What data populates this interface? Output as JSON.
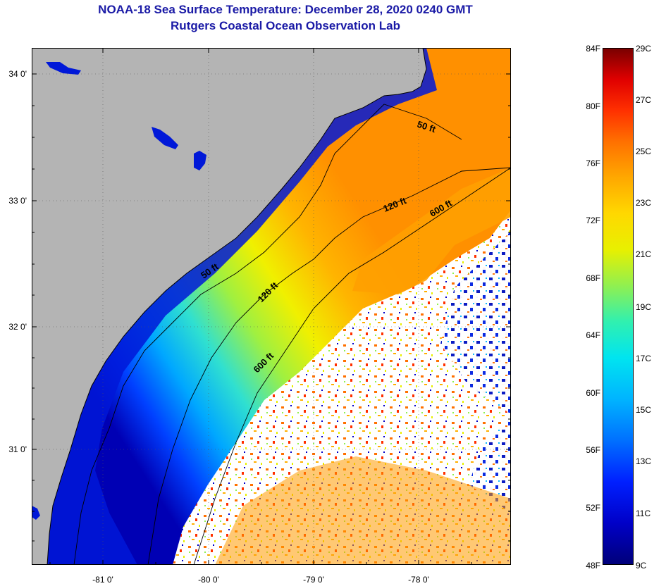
{
  "header": {
    "title": "NOAA-18 Sea Surface Temperature:  December 28, 2020 0240 GMT",
    "subtitle": "Rutgers Coastal Ocean Observation Lab"
  },
  "map": {
    "lat_labels": [
      "34 0'",
      "33 0'",
      "32 0'",
      "31 0'"
    ],
    "lon_labels": [
      "-81 0'",
      "-80 0'",
      "-79 0'",
      "-78 0'"
    ],
    "contour_labels": [
      "50 ft",
      "50 ft",
      "120 ft",
      "120 ft",
      "600 ft",
      "600 ft"
    ],
    "colors": {
      "land": "#b4b4b4",
      "cloud": "#ffffff",
      "coast": "#000000"
    }
  },
  "colorbar": {
    "fahrenheit_labels": [
      "84F",
      "80F",
      "76F",
      "72F",
      "68F",
      "64F",
      "60F",
      "56F",
      "52F",
      "48F"
    ],
    "celsius_labels": [
      "29C",
      "27C",
      "25C",
      "23C",
      "21C",
      "19C",
      "17C",
      "15C",
      "13C",
      "11C",
      "9C"
    ]
  }
}
